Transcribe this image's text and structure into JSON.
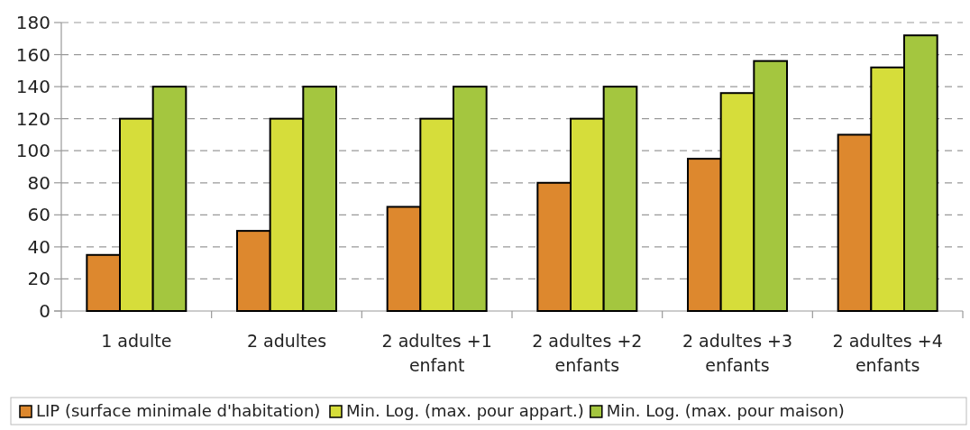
{
  "chart_data": {
    "type": "bar",
    "categories": [
      "1 adulte",
      "2 adultes",
      "2 adultes +1 enfant",
      "2 adultes +2 enfants",
      "2 adultes +3 enfants",
      "2 adultes +4 enfants"
    ],
    "series": [
      {
        "name": "LIP (surface minimale d'habitation)",
        "color": "#dd882e",
        "values": [
          35,
          50,
          65,
          80,
          95,
          110
        ]
      },
      {
        "name": "Min. Log. (max. pour appart.)",
        "color": "#d6dd3a",
        "values": [
          120,
          120,
          120,
          120,
          136,
          152
        ]
      },
      {
        "name": "Min. Log. (max. pour maison)",
        "color": "#a4c63f",
        "values": [
          140,
          140,
          140,
          140,
          156,
          172
        ]
      }
    ],
    "ylim": [
      0,
      180
    ],
    "yticks": [
      0,
      20,
      40,
      60,
      80,
      100,
      120,
      140,
      160,
      180
    ],
    "grid": "y",
    "legend": "bottom"
  }
}
